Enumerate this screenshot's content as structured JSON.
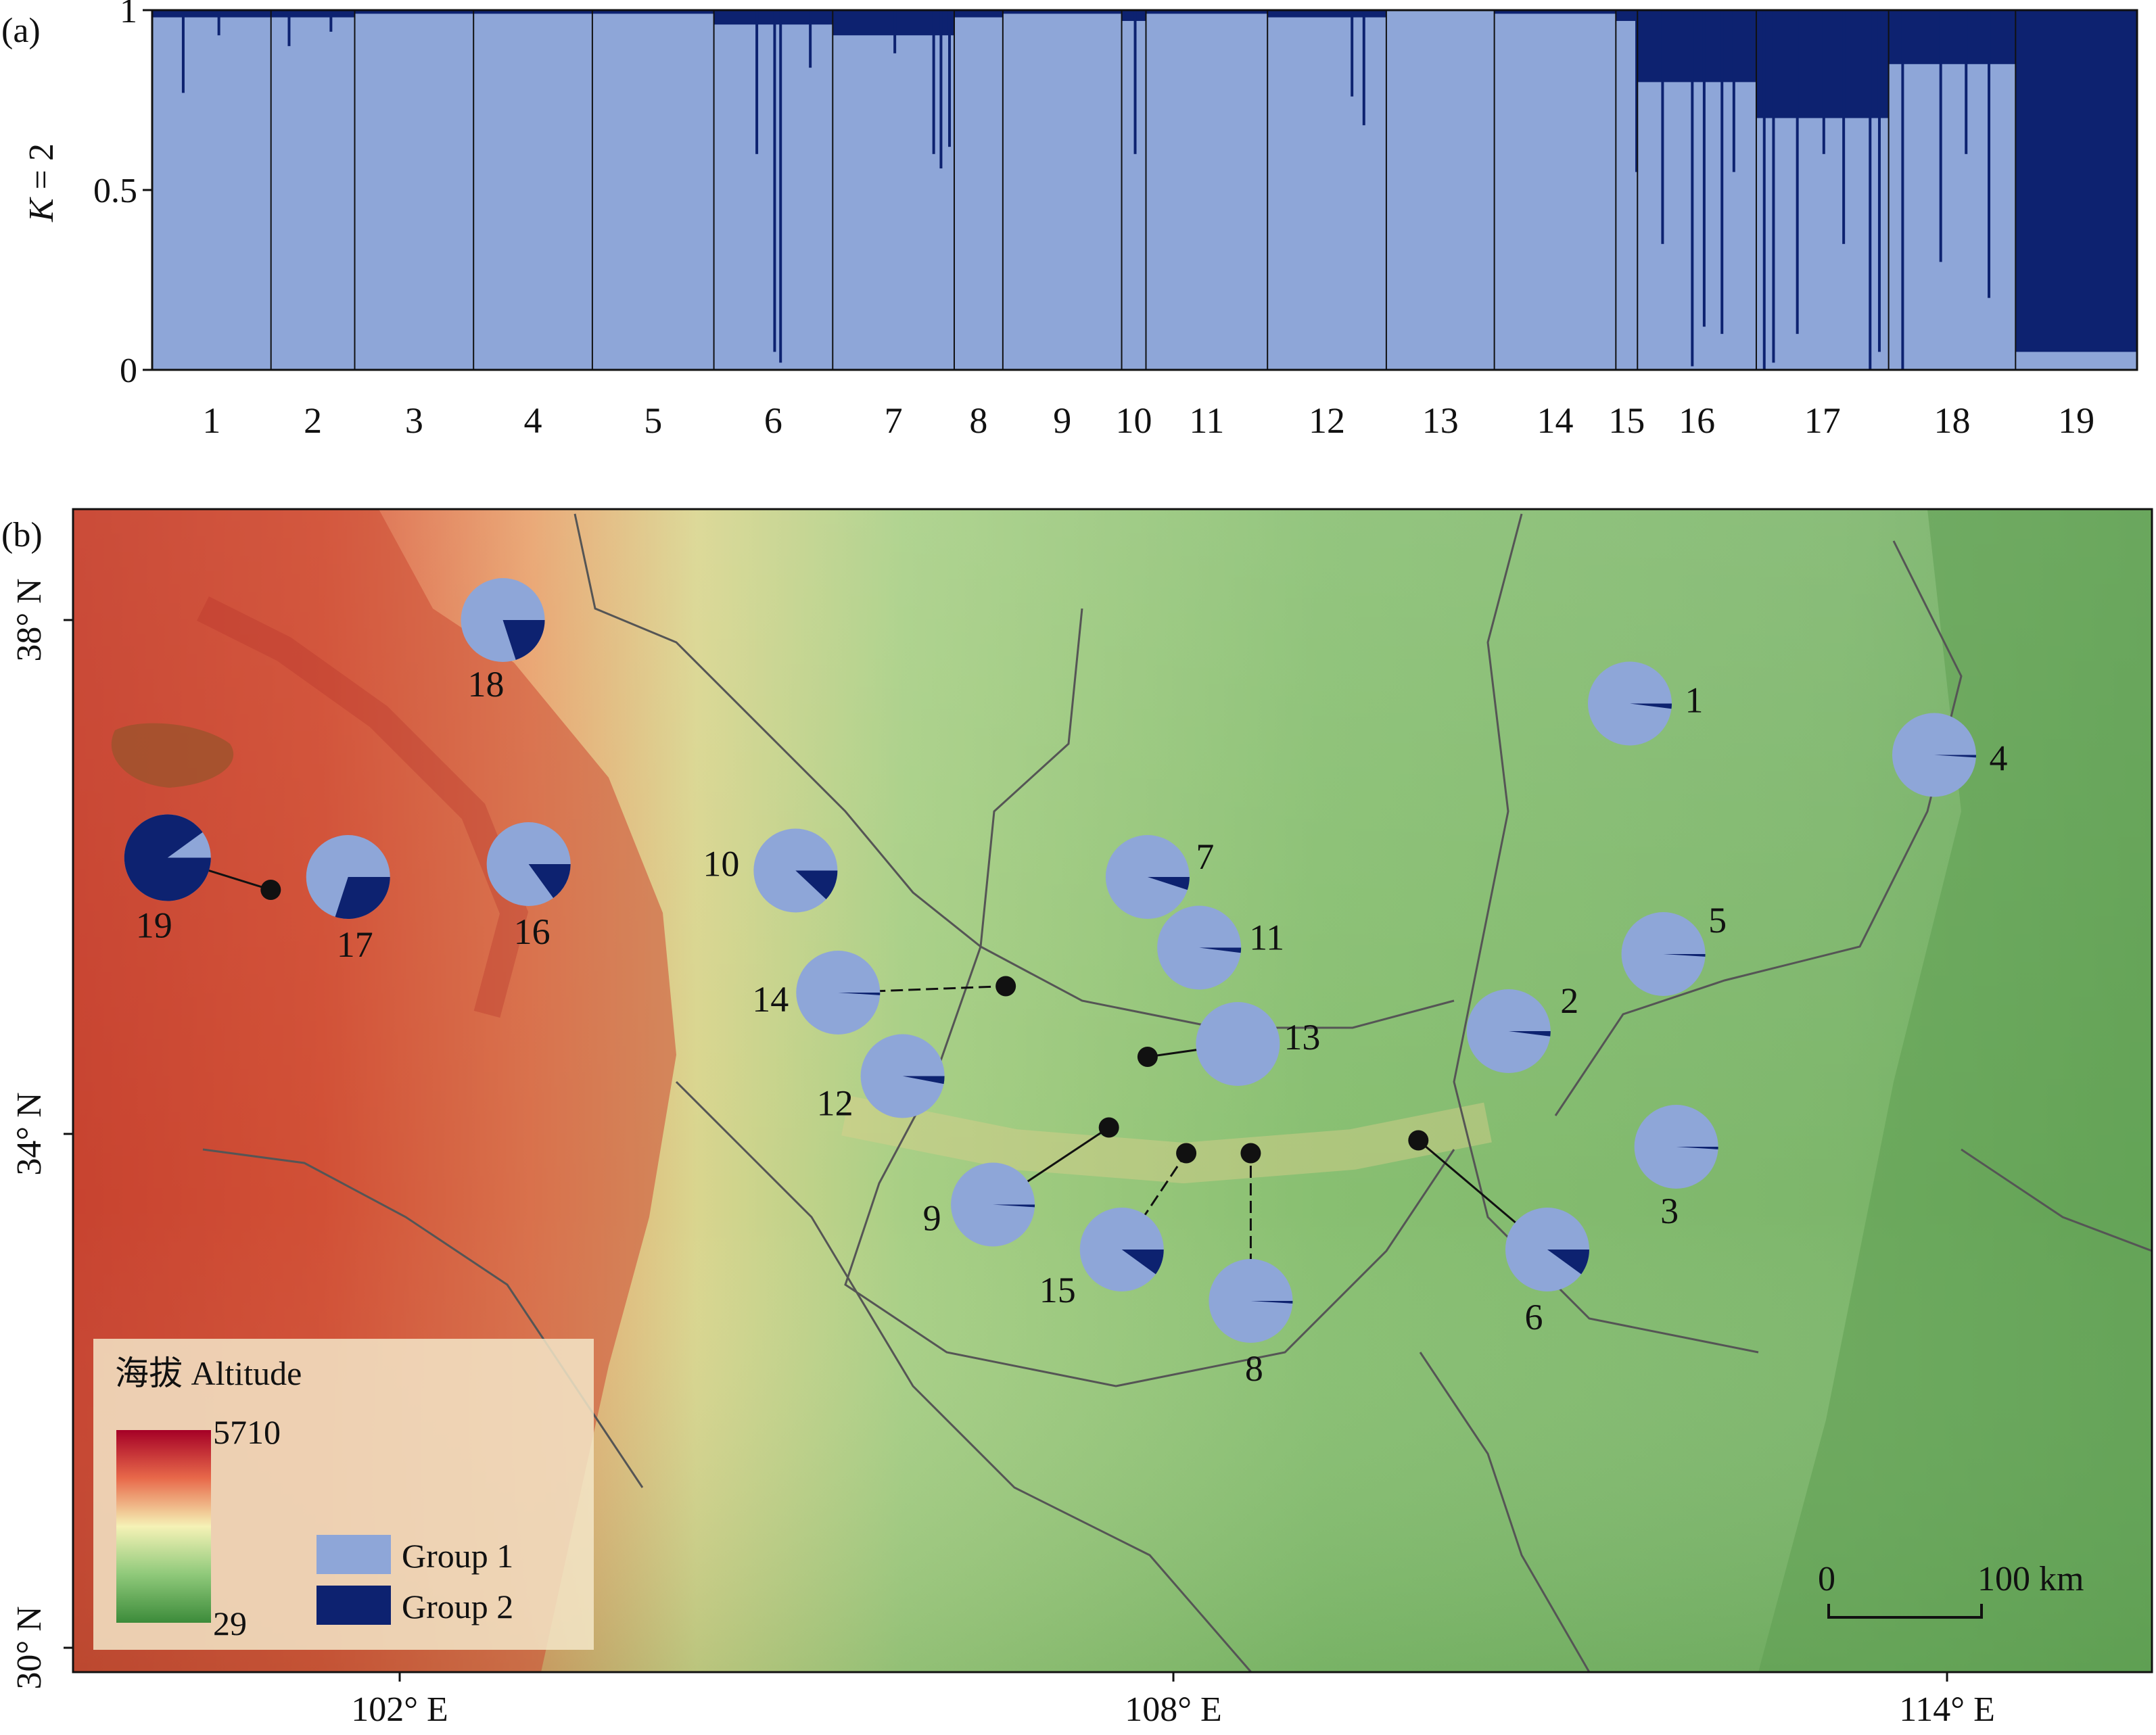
{
  "colors": {
    "group1": "#8ea6d8",
    "group2": "#0d2270",
    "bar_bg": "#8ea6d8"
  },
  "chart_data": [
    {
      "type": "bar",
      "panel_label": "(a)",
      "ylabel_italic": "K",
      "ylabel_rest": " = 2",
      "ylim": [
        0,
        1
      ],
      "yticks": [
        "0",
        "0.5",
        "1"
      ],
      "categories": [
        "1",
        "2",
        "3",
        "4",
        "5",
        "6",
        "7",
        "8",
        "9",
        "10",
        "11",
        "12",
        "13",
        "14",
        "15",
        "16",
        "17",
        "18",
        "19"
      ],
      "population_widths": [
        44,
        31,
        44,
        44,
        45,
        44,
        45,
        18,
        44,
        9,
        45,
        44,
        40,
        45,
        8,
        44,
        49,
        47,
        45
      ],
      "series": [
        {
          "name": "Group 1",
          "values": [
            0.98,
            0.98,
            0.99,
            0.99,
            0.99,
            0.96,
            0.93,
            0.98,
            0.99,
            0.97,
            0.99,
            0.98,
            1.0,
            0.99,
            0.97,
            0.8,
            0.7,
            0.85,
            0.05
          ]
        },
        {
          "name": "Group 2",
          "values": [
            0.02,
            0.02,
            0.01,
            0.01,
            0.01,
            0.04,
            0.07,
            0.02,
            0.01,
            0.03,
            0.01,
            0.02,
            0.0,
            0.01,
            0.03,
            0.2,
            0.3,
            0.15,
            0.95
          ]
        }
      ],
      "spikes": [
        {
          "pop": "1",
          "pos": 0.25,
          "value": 0.77
        },
        {
          "pop": "1",
          "pos": 0.55,
          "value": 0.93
        },
        {
          "pop": "2",
          "pos": 0.2,
          "value": 0.9
        },
        {
          "pop": "2",
          "pos": 0.7,
          "value": 0.94
        },
        {
          "pop": "6",
          "pos": 0.35,
          "value": 0.6
        },
        {
          "pop": "6",
          "pos": 0.5,
          "value": 0.05
        },
        {
          "pop": "6",
          "pos": 0.55,
          "value": 0.02
        },
        {
          "pop": "6",
          "pos": 0.8,
          "value": 0.84
        },
        {
          "pop": "7",
          "pos": 0.5,
          "value": 0.88
        },
        {
          "pop": "7",
          "pos": 0.82,
          "value": 0.6
        },
        {
          "pop": "7",
          "pos": 0.88,
          "value": 0.56
        },
        {
          "pop": "7",
          "pos": 0.95,
          "value": 0.62
        },
        {
          "pop": "10",
          "pos": 0.5,
          "value": 0.6
        },
        {
          "pop": "12",
          "pos": 0.7,
          "value": 0.76
        },
        {
          "pop": "12",
          "pos": 0.8,
          "value": 0.68
        },
        {
          "pop": "15",
          "pos": 0.9,
          "value": 0.55
        },
        {
          "pop": "16",
          "pos": 0.2,
          "value": 0.35
        },
        {
          "pop": "16",
          "pos": 0.45,
          "value": 0.01
        },
        {
          "pop": "16",
          "pos": 0.55,
          "value": 0.12
        },
        {
          "pop": "16",
          "pos": 0.7,
          "value": 0.1
        },
        {
          "pop": "16",
          "pos": 0.8,
          "value": 0.55
        },
        {
          "pop": "17",
          "pos": 0.05,
          "value": 0.0
        },
        {
          "pop": "17",
          "pos": 0.12,
          "value": 0.02
        },
        {
          "pop": "17",
          "pos": 0.3,
          "value": 0.1
        },
        {
          "pop": "17",
          "pos": 0.5,
          "value": 0.6
        },
        {
          "pop": "17",
          "pos": 0.65,
          "value": 0.35
        },
        {
          "pop": "17",
          "pos": 0.85,
          "value": 0.0
        },
        {
          "pop": "17",
          "pos": 0.92,
          "value": 0.05
        },
        {
          "pop": "18",
          "pos": 0.1,
          "value": 0.0
        },
        {
          "pop": "18",
          "pos": 0.4,
          "value": 0.3
        },
        {
          "pop": "18",
          "pos": 0.6,
          "value": 0.6
        },
        {
          "pop": "18",
          "pos": 0.78,
          "value": 0.2
        }
      ]
    },
    {
      "type": "pie",
      "panel_label": "(b)",
      "lat_ticks": [
        "38° N",
        "34° N",
        "30° N"
      ],
      "lon_ticks": [
        "102° E",
        "108° E",
        "114° E"
      ],
      "legend_title": "海拔 Altitude",
      "altitude_max": "5710",
      "altitude_min": "29",
      "legend_groups": [
        "Group 1",
        "Group 2"
      ],
      "scale_labels": [
        "0",
        "100 km"
      ],
      "populations": [
        {
          "label": "1",
          "lon": 111.54,
          "lat": 37.35,
          "group2": 0.02
        },
        {
          "label": "2",
          "lon": 110.6,
          "lat": 34.8,
          "group2": 0.02
        },
        {
          "label": "3",
          "lon": 111.9,
          "lat": 33.9,
          "group2": 0.01
        },
        {
          "label": "4",
          "lon": 113.9,
          "lat": 36.95,
          "group2": 0.01
        },
        {
          "label": "5",
          "lon": 111.8,
          "lat": 35.4,
          "group2": 0.01
        },
        {
          "label": "6",
          "lon": 110.9,
          "lat": 33.1,
          "group2": 0.1
        },
        {
          "label": "7",
          "lon": 107.8,
          "lat": 36.0,
          "group2": 0.05
        },
        {
          "label": "8",
          "lon": 108.6,
          "lat": 32.7,
          "group2": 0.01
        },
        {
          "label": "9",
          "lon": 106.6,
          "lat": 33.45,
          "group2": 0.01
        },
        {
          "label": "10",
          "lon": 105.07,
          "lat": 36.05,
          "group2": 0.12
        },
        {
          "label": "11",
          "lon": 108.2,
          "lat": 35.45,
          "group2": 0.02
        },
        {
          "label": "12",
          "lon": 105.9,
          "lat": 34.45,
          "group2": 0.03
        },
        {
          "label": "13",
          "lon": 108.5,
          "lat": 34.7,
          "group2": 0.0
        },
        {
          "label": "14",
          "lon": 105.4,
          "lat": 35.1,
          "group2": 0.01
        },
        {
          "label": "15",
          "lon": 107.6,
          "lat": 33.1,
          "group2": 0.1
        },
        {
          "label": "16",
          "lon": 103.0,
          "lat": 36.1,
          "group2": 0.15
        },
        {
          "label": "17",
          "lon": 101.6,
          "lat": 36.0,
          "group2": 0.3
        },
        {
          "label": "18",
          "lon": 102.8,
          "lat": 38.0,
          "group2": 0.2
        },
        {
          "label": "19",
          "lon": 100.2,
          "lat": 36.15,
          "group2": 0.9
        }
      ]
    }
  ]
}
